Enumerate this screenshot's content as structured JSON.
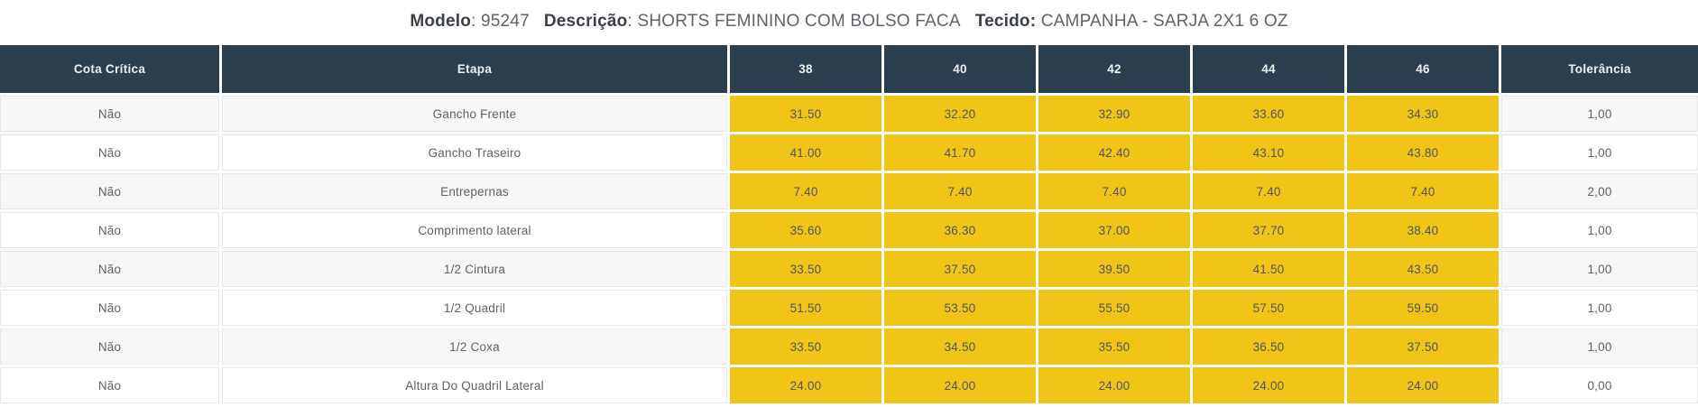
{
  "title": {
    "parts": [
      {
        "label": "Modelo",
        "value": ": 95247"
      },
      {
        "label": "Descrição",
        "value": ": SHORTS FEMININO COM BOLSO FACA"
      },
      {
        "label": "Tecido:",
        "value": " CAMPANHA - SARJA 2X1 6 OZ"
      }
    ]
  },
  "table": {
    "headers": [
      "Cota Crítica",
      "Etapa",
      "38",
      "40",
      "42",
      "44",
      "46",
      "Tolerância"
    ],
    "rows": [
      {
        "cota_critica": "Não",
        "etapa": "Gancho Frente",
        "values": [
          "31.50",
          "32.20",
          "32.90",
          "33.60",
          "34.30"
        ],
        "tolerancia": "1,00"
      },
      {
        "cota_critica": "Não",
        "etapa": "Gancho Traseiro",
        "values": [
          "41.00",
          "41.70",
          "42.40",
          "43.10",
          "43.80"
        ],
        "tolerancia": "1,00"
      },
      {
        "cota_critica": "Não",
        "etapa": "Entrepernas",
        "values": [
          "7.40",
          "7.40",
          "7.40",
          "7.40",
          "7.40"
        ],
        "tolerancia": "2,00"
      },
      {
        "cota_critica": "Não",
        "etapa": "Comprimento lateral",
        "values": [
          "35.60",
          "36.30",
          "37.00",
          "37.70",
          "38.40"
        ],
        "tolerancia": "1,00"
      },
      {
        "cota_critica": "Não",
        "etapa": "1/2 Cintura",
        "values": [
          "33.50",
          "37.50",
          "39.50",
          "41.50",
          "43.50"
        ],
        "tolerancia": "1,00"
      },
      {
        "cota_critica": "Não",
        "etapa": "1/2 Quadril",
        "values": [
          "51.50",
          "53.50",
          "55.50",
          "57.50",
          "59.50"
        ],
        "tolerancia": "1,00"
      },
      {
        "cota_critica": "Não",
        "etapa": "1/2 Coxa",
        "values": [
          "33.50",
          "34.50",
          "35.50",
          "36.50",
          "37.50"
        ],
        "tolerancia": "1,00"
      },
      {
        "cota_critica": "Não",
        "etapa": "Altura Do Quadril Lateral",
        "values": [
          "24.00",
          "24.00",
          "24.00",
          "24.00",
          "24.00"
        ],
        "tolerancia": "0,00"
      }
    ]
  },
  "colors": {
    "header_bg": "#2d3e50",
    "highlight_cell_bg": "#f0c517",
    "row_alt_bg": "#f7f7f8"
  }
}
